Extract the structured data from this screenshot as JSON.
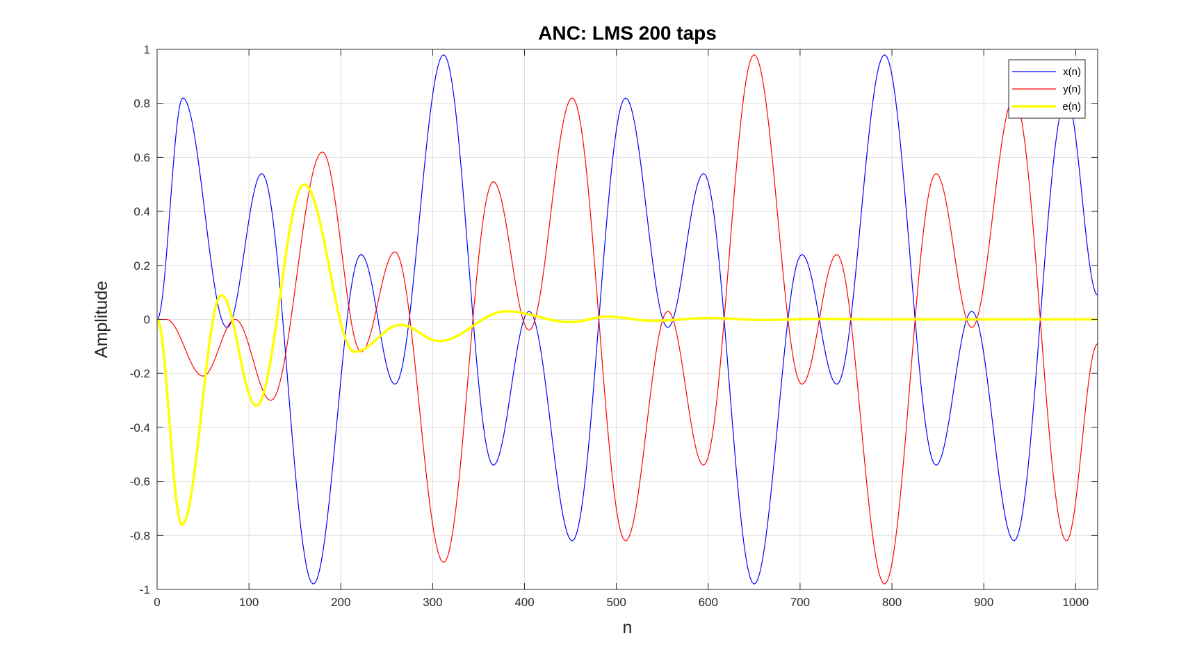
{
  "chart_data": {
    "type": "line",
    "title": "ANC: LMS 200 taps",
    "xlabel": "n",
    "ylabel": "Amplitude",
    "xlim": [
      0,
      1024
    ],
    "ylim": [
      -1,
      1
    ],
    "xticks": [
      0,
      100,
      200,
      300,
      400,
      500,
      600,
      700,
      800,
      900,
      1000
    ],
    "yticks": [
      -1,
      -0.8,
      -0.6,
      -0.4,
      -0.2,
      0,
      0.2,
      0.4,
      0.6,
      0.8,
      1
    ],
    "xtick_labels": [
      "0",
      "100",
      "200",
      "300",
      "400",
      "500",
      "600",
      "700",
      "800",
      "900",
      "1000"
    ],
    "ytick_labels": [
      "-1",
      "-0.8",
      "-0.6",
      "-0.4",
      "-0.2",
      "0",
      "0.2",
      "0.4",
      "0.6",
      "0.8",
      "1"
    ],
    "grid": true,
    "legend_position": "top-right",
    "series": [
      {
        "name": "x(n)",
        "color": "#0000ff",
        "line_width": "thin",
        "x": [
          0,
          28,
          76,
          114,
          170,
          222,
          259,
          312,
          366,
          405,
          452,
          510,
          556,
          595,
          650,
          702,
          740,
          792,
          848,
          887,
          933,
          990,
          1024
        ],
        "y": [
          0,
          0.82,
          -0.03,
          0.54,
          -0.98,
          0.24,
          -0.24,
          0.98,
          -0.54,
          0.03,
          -0.82,
          0.82,
          -0.03,
          0.54,
          -0.98,
          0.24,
          -0.24,
          0.98,
          -0.54,
          0.03,
          -0.82,
          0.82,
          0.09
        ]
      },
      {
        "name": "y(n)",
        "color": "#ff0000",
        "line_width": "thin",
        "x": [
          0,
          10,
          50,
          85,
          124,
          180,
          222,
          259,
          312,
          366,
          405,
          452,
          510,
          556,
          595,
          650,
          702,
          740,
          792,
          848,
          887,
          933,
          990,
          1024
        ],
        "y": [
          0,
          0,
          -0.21,
          0,
          -0.3,
          0.62,
          -0.12,
          0.25,
          -0.9,
          0.51,
          -0.04,
          0.82,
          -0.82,
          0.03,
          -0.54,
          0.98,
          -0.24,
          0.24,
          -0.98,
          0.54,
          -0.03,
          0.82,
          -0.82,
          -0.09
        ]
      },
      {
        "name": "e(n)",
        "color": "#ffff00",
        "line_width": "thick",
        "x": [
          0,
          27,
          70,
          108,
          160,
          215,
          265,
          307,
          380,
          450,
          490,
          540,
          600,
          660,
          720,
          800,
          900,
          1024
        ],
        "y": [
          0,
          -0.76,
          0.09,
          -0.32,
          0.5,
          -0.12,
          -0.02,
          -0.08,
          0.03,
          -0.01,
          0.01,
          -0.005,
          0.005,
          -0.002,
          0.002,
          0,
          0,
          0
        ]
      }
    ]
  }
}
